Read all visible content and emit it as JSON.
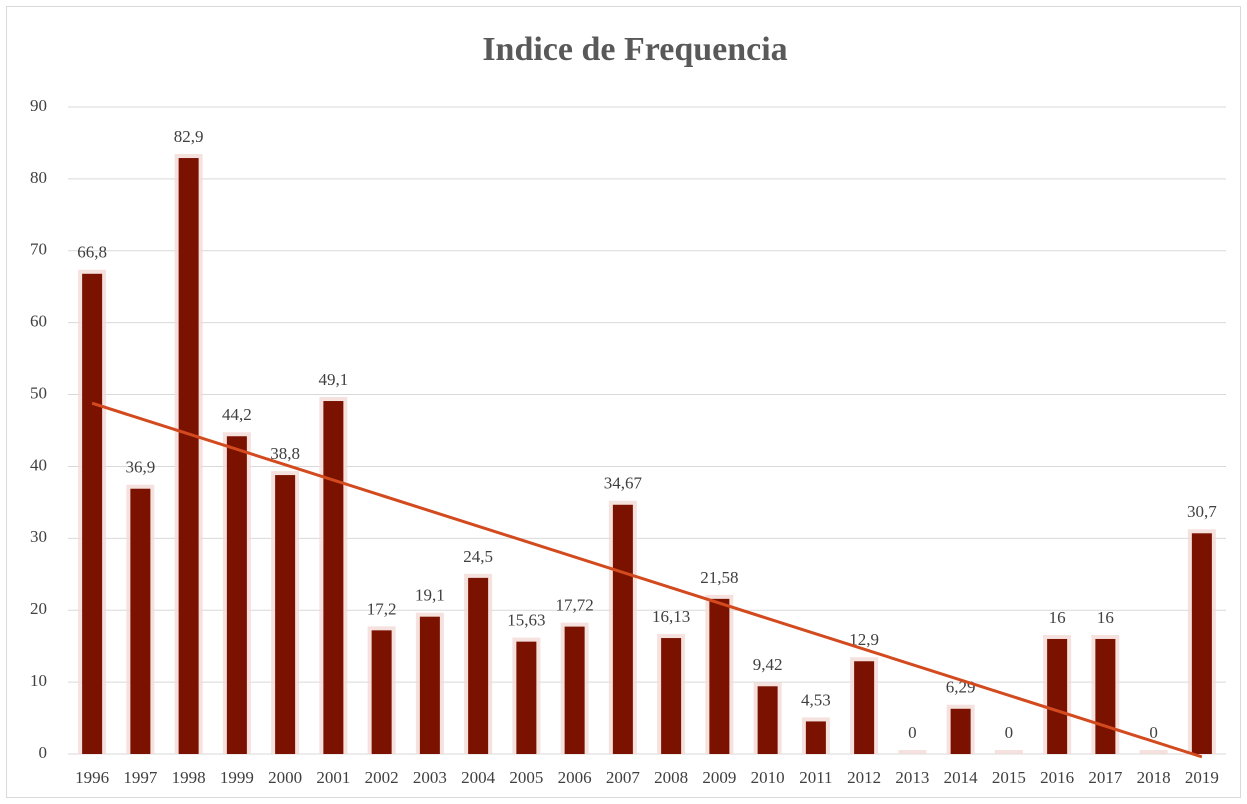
{
  "chart_data": {
    "type": "bar",
    "title": "Indice de Frequencia",
    "categories": [
      "1996",
      "1997",
      "1998",
      "1999",
      "2000",
      "2001",
      "2002",
      "2003",
      "2004",
      "2005",
      "2006",
      "2007",
      "2008",
      "2009",
      "2010",
      "2011",
      "2012",
      "2013",
      "2014",
      "2015",
      "2016",
      "2017",
      "2018",
      "2019"
    ],
    "values": [
      66.8,
      36.9,
      82.9,
      44.2,
      38.8,
      49.1,
      17.2,
      19.1,
      24.5,
      15.63,
      17.72,
      34.67,
      16.13,
      21.58,
      9.42,
      4.53,
      12.9,
      0,
      6.29,
      0,
      16,
      16,
      0,
      30.7
    ],
    "value_labels": [
      "66,8",
      "36,9",
      "82,9",
      "44,2",
      "38,8",
      "49,1",
      "17,2",
      "19,1",
      "24,5",
      "15,63",
      "17,72",
      "34,67",
      "16,13",
      "21,58",
      "9,42",
      "4,53",
      "12,9",
      "0",
      "6,29",
      "0",
      "16",
      "16",
      "0",
      "30,7"
    ],
    "color": "#7b1200",
    "trendline": {
      "values": [
        48.8,
        -0.4
      ],
      "color": "#d24a1e"
    },
    "ylim": [
      0,
      90
    ],
    "yticks": [
      0,
      10,
      20,
      30,
      40,
      50,
      60,
      70,
      80,
      90
    ],
    "grid": true
  }
}
